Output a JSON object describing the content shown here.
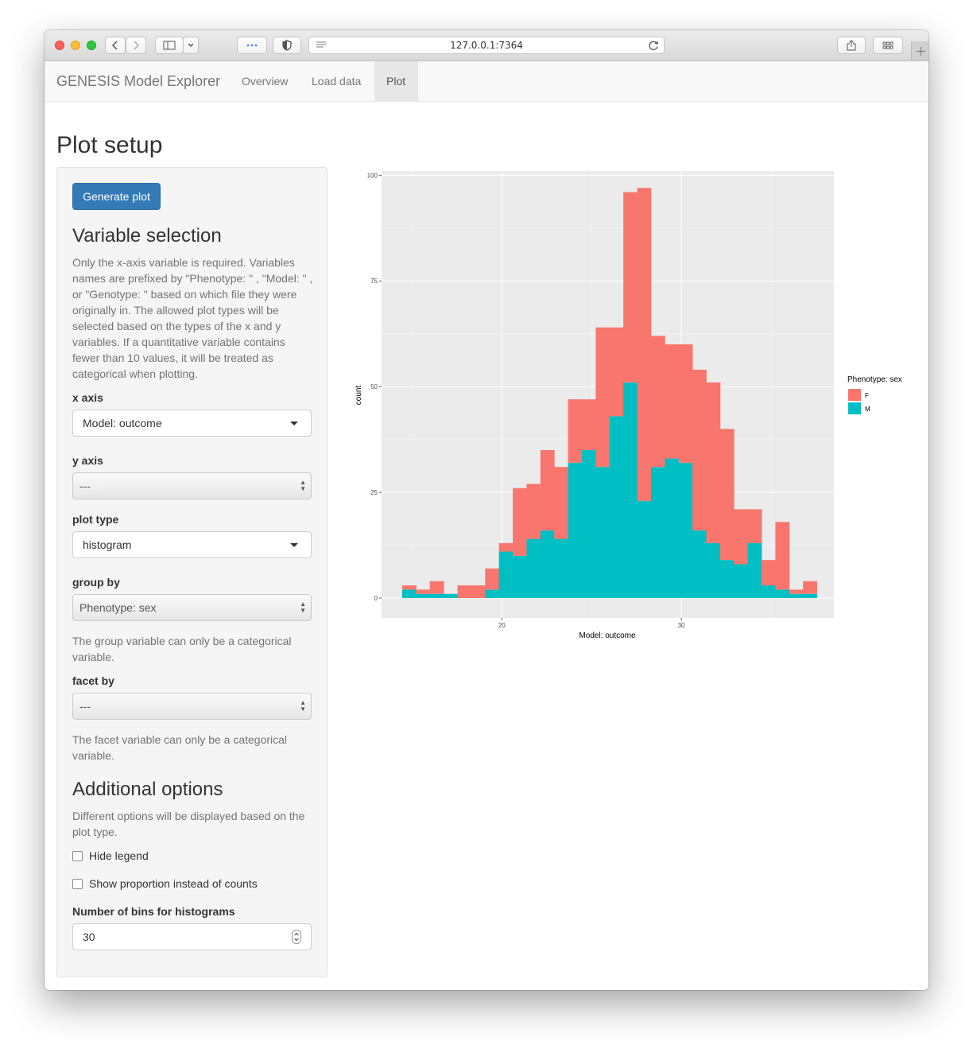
{
  "browser": {
    "url": "127.0.0.1:7364"
  },
  "navbar": {
    "brand": "GENESIS Model Explorer",
    "links": [
      {
        "label": "Overview"
      },
      {
        "label": "Load data"
      },
      {
        "label": "Plot",
        "active": true
      }
    ]
  },
  "page": {
    "title": "Plot setup"
  },
  "sidebar": {
    "generate_button": "Generate plot",
    "variable_selection": {
      "heading": "Variable selection",
      "help": "Only the x-axis variable is required. Variables names are prefixed by \"Phenotype: \" , \"Model: \" , or \"Genotype: \" based on which file they were originally in. The allowed plot types will be selected based on the types of the x and y variables. If a quantitative variable contains fewer than 10 values, it will be treated as categorical when plotting."
    },
    "x_axis": {
      "label": "x axis",
      "value": "Model: outcome"
    },
    "y_axis": {
      "label": "y axis",
      "value": "---"
    },
    "plot_type": {
      "label": "plot type",
      "value": "histogram"
    },
    "group_by": {
      "label": "group by",
      "value": "Phenotype: sex",
      "help": "The group variable can only be a categorical variable."
    },
    "facet_by": {
      "label": "facet by",
      "value": "---",
      "help": "The facet variable can only be a categorical variable."
    },
    "additional": {
      "heading": "Additional options",
      "help": "Different options will be displayed based on the plot type.",
      "hide_legend": {
        "label": "Hide legend",
        "checked": false
      },
      "show_proportion": {
        "label": "Show proportion instead of counts",
        "checked": false
      },
      "bins": {
        "label": "Number of bins for histograms",
        "value": "30"
      }
    }
  },
  "colors": {
    "primary": "#337ab7",
    "F": "#F8766D",
    "M": "#00BFC4",
    "panel_bg": "#EBEBEB"
  },
  "chart_data": {
    "type": "bar",
    "stacked": true,
    "xlabel": "Model: outcome",
    "ylabel": "count",
    "xlim": [
      13.3,
      38.5
    ],
    "ylim": [
      -4.7,
      101
    ],
    "x_ticks": [
      20,
      30
    ],
    "y_ticks": [
      0,
      25,
      50,
      75,
      100
    ],
    "bin_width": 0.77,
    "bin_start": 14.45,
    "legend": {
      "title": "Phenotype: sex",
      "position": "right"
    },
    "series": [
      {
        "name": "M",
        "values": [
          2,
          1,
          1,
          1,
          0,
          0,
          2,
          11,
          10,
          14,
          16,
          14,
          32,
          35,
          31,
          43,
          51,
          23,
          31,
          33,
          32,
          16,
          13,
          9,
          8,
          13,
          3,
          2,
          1,
          1
        ]
      },
      {
        "name": "F",
        "values": [
          1,
          1,
          3,
          0,
          3,
          3,
          5,
          2,
          16,
          13,
          19,
          17,
          15,
          12,
          33,
          21,
          45,
          74,
          31,
          27,
          28,
          38,
          38,
          31,
          13,
          8,
          6,
          16,
          1,
          3
        ]
      }
    ]
  }
}
